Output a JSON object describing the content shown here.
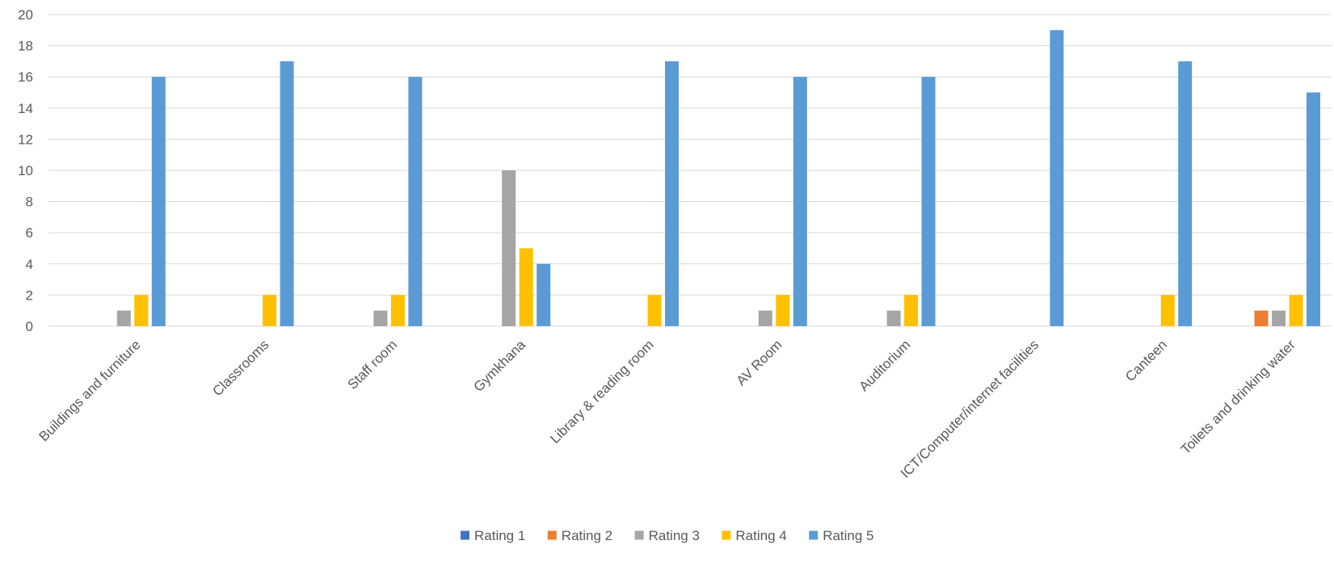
{
  "chart_data": {
    "type": "bar",
    "title": "",
    "xlabel": "",
    "ylabel": "",
    "ylim": [
      0,
      20
    ],
    "ytick_step": 2,
    "grid": true,
    "legend_position": "bottom",
    "categories": [
      "Buildings and furniture",
      "Classrooms",
      "Staff room",
      "Gymkhana",
      "Library & reading room",
      "AV Room",
      "Auditorium",
      "ICT/Computer/internet facilities",
      "Canteen",
      "Toilets and drinking water"
    ],
    "series": [
      {
        "name": "Rating 1",
        "color": "#4472c4",
        "values": [
          0,
          0,
          0,
          0,
          0,
          0,
          0,
          0,
          0,
          0
        ]
      },
      {
        "name": "Rating 2",
        "color": "#ed7d31",
        "values": [
          0,
          0,
          0,
          0,
          0,
          0,
          0,
          0,
          0,
          1
        ]
      },
      {
        "name": "Rating 3",
        "color": "#a5a5a5",
        "values": [
          1,
          0,
          1,
          10,
          0,
          1,
          1,
          0,
          0,
          1
        ]
      },
      {
        "name": "Rating 4",
        "color": "#ffc000",
        "values": [
          2,
          2,
          2,
          5,
          2,
          2,
          2,
          0,
          2,
          2
        ]
      },
      {
        "name": "Rating 5",
        "color": "#5b9bd5",
        "values": [
          16,
          17,
          16,
          4,
          17,
          16,
          16,
          19,
          17,
          15
        ]
      }
    ]
  }
}
